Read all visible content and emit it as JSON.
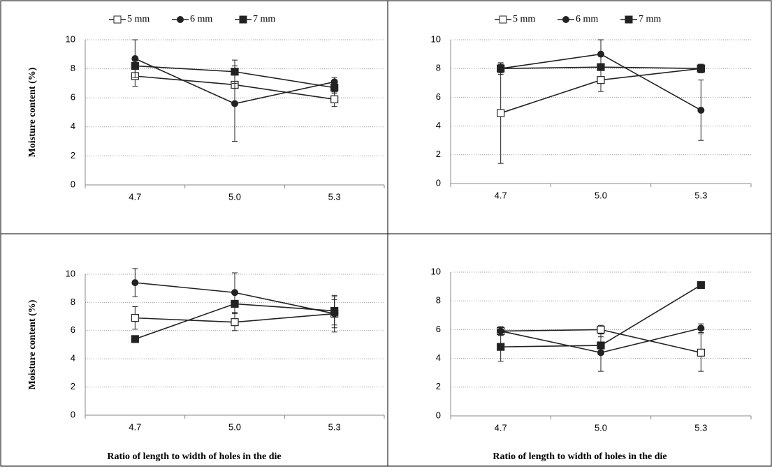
{
  "chart_data": [
    {
      "type": "line",
      "categories": [
        "4.7",
        "5.0",
        "5.3"
      ],
      "ylabel": "Moisture content (%)",
      "ylim": [
        0,
        10
      ],
      "yticks": [
        0,
        2,
        4,
        6,
        8,
        10
      ],
      "grid": true,
      "legend": "top",
      "series": [
        {
          "name": "5 mm",
          "color": "#222222",
          "marker": "square-open",
          "values": [
            7.5,
            6.9,
            5.9
          ],
          "errors": [
            0.7,
            1.3,
            0.5
          ]
        },
        {
          "name": "6 mm",
          "color": "#222222",
          "marker": "circle",
          "values": [
            8.7,
            5.6,
            7.1
          ],
          "errors": [
            1.3,
            2.6,
            0.3
          ]
        },
        {
          "name": "7 mm",
          "color": "#222222",
          "marker": "square",
          "values": [
            8.2,
            7.8,
            6.7
          ],
          "errors": [
            0.2,
            0.8,
            0.4
          ]
        }
      ]
    },
    {
      "type": "line",
      "categories": [
        "4.7",
        "5.0",
        "5.3"
      ],
      "ylim": [
        0,
        10
      ],
      "yticks": [
        0,
        2,
        4,
        6,
        8,
        10
      ],
      "grid": true,
      "legend": "top",
      "series": [
        {
          "name": "5 mm",
          "color": "#222222",
          "marker": "square-open",
          "values": [
            4.9,
            7.2,
            8.0
          ],
          "errors": [
            3.5,
            0.8,
            0.3
          ]
        },
        {
          "name": "6 mm",
          "color": "#222222",
          "marker": "circle",
          "values": [
            8.0,
            9.0,
            5.1
          ],
          "errors": [
            0.3,
            1.0,
            2.1
          ]
        },
        {
          "name": "7 mm",
          "color": "#222222",
          "marker": "square",
          "values": [
            8.0,
            8.1,
            8.0
          ],
          "errors": [
            0.4,
            0.2,
            0.3
          ]
        }
      ]
    },
    {
      "type": "line",
      "categories": [
        "4.7",
        "5.0",
        "5.3"
      ],
      "ylabel": "Moisture content (%)",
      "xlabel": "Ratio of length to width  of holes in the die",
      "ylim": [
        0,
        10
      ],
      "yticks": [
        0,
        2,
        4,
        6,
        8,
        10
      ],
      "grid": true,
      "series": [
        {
          "color": "#222222",
          "marker": "square-open",
          "values": [
            6.9,
            6.6,
            7.2
          ],
          "errors": [
            0.8,
            0.6,
            1.3
          ]
        },
        {
          "color": "#222222",
          "marker": "circle",
          "values": [
            9.4,
            8.7,
            7.2
          ],
          "errors": [
            1.0,
            1.4,
            1.0
          ]
        },
        {
          "color": "#222222",
          "marker": "square",
          "values": [
            5.4,
            7.9,
            7.4
          ],
          "errors": [
            0.2,
            0.7,
            1.0
          ]
        }
      ]
    },
    {
      "type": "line",
      "categories": [
        "4.7",
        "5.0",
        "5.3"
      ],
      "xlabel": "Ratio of length to width  of holes in the die",
      "ylim": [
        0,
        10
      ],
      "yticks": [
        0,
        2,
        4,
        6,
        8,
        10
      ],
      "grid": true,
      "series": [
        {
          "color": "#222222",
          "marker": "square-open",
          "values": [
            5.9,
            6.0,
            4.4
          ],
          "errors": [
            0.3,
            0.3,
            1.3
          ]
        },
        {
          "color": "#222222",
          "marker": "circle",
          "values": [
            5.9,
            4.4,
            6.1
          ],
          "errors": [
            0.3,
            1.3,
            0.3
          ]
        },
        {
          "color": "#222222",
          "marker": "square",
          "values": [
            4.8,
            4.9,
            9.1
          ],
          "errors": [
            1.0,
            0.6,
            0.1
          ]
        }
      ]
    }
  ]
}
